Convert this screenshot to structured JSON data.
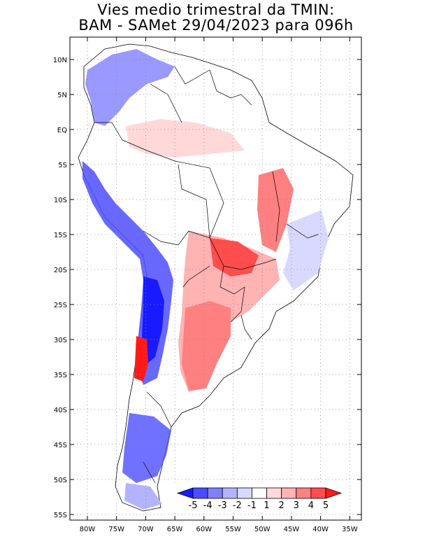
{
  "title": {
    "line1": "Vies medio trimestral da TMIN:",
    "line2": "BAM - SAMet 29/04/2023  para 096h"
  },
  "map": {
    "lat_ticks": [
      "10N",
      "5N",
      "EQ",
      "5S",
      "10S",
      "15S",
      "20S",
      "25S",
      "30S",
      "35S",
      "40S",
      "45S",
      "50S",
      "55S"
    ],
    "lon_ticks": [
      "80W",
      "75W",
      "70W",
      "65W",
      "60W",
      "55W",
      "50W",
      "45W",
      "40W",
      "35W"
    ],
    "gridlines": true,
    "colors": {
      "land_neutral": "#ffffff",
      "ocean": "#ffffff",
      "border": "#000000"
    }
  },
  "colorbar": {
    "position": "bottom-right",
    "labels": [
      "-5",
      "-4",
      "-3",
      "-2",
      "-1",
      "1",
      "2",
      "3",
      "4",
      "5"
    ],
    "colors": [
      "#1a1aff",
      "#4d4dff",
      "#8080ff",
      "#b3b3ff",
      "#d9d9ff",
      "#ffffff",
      "#ffd9d9",
      "#ffb3b3",
      "#ff8080",
      "#ff4d4d",
      "#ff1a1a"
    ]
  }
}
